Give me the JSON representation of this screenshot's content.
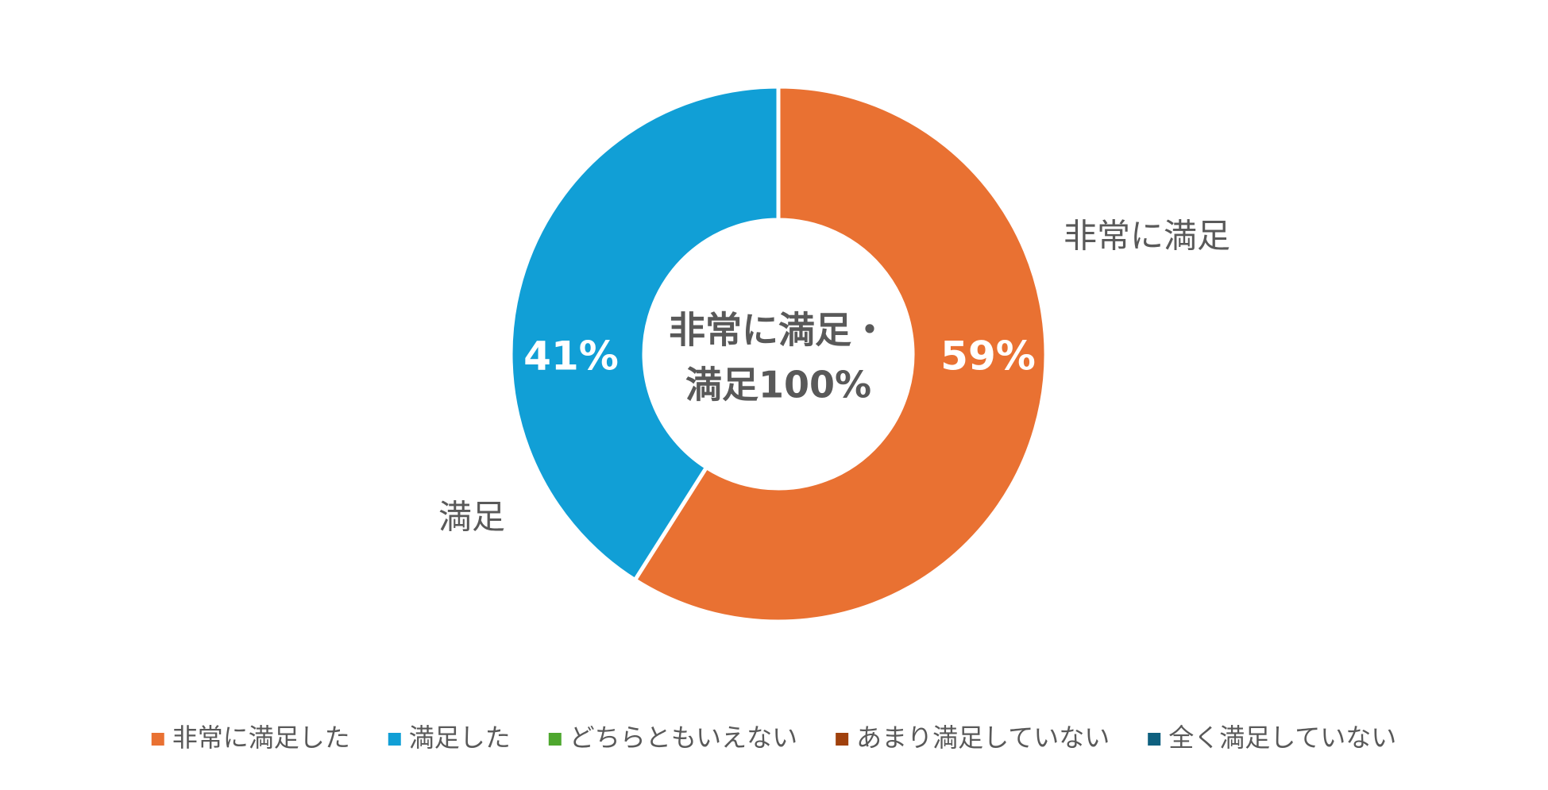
{
  "chart_data": {
    "type": "donut",
    "categories": [
      "非常に満足した",
      "満足した",
      "どちらともいえない",
      "あまり満足していない",
      "全く満足していない"
    ],
    "values": [
      59,
      41,
      0,
      0,
      0
    ],
    "value_labels": [
      "59%",
      "41%",
      null,
      null,
      null
    ],
    "segment_labels": [
      "非常に満足",
      "満足",
      null,
      null,
      null
    ],
    "colors": [
      "#e97132",
      "#119fd6",
      "#4ea72e",
      "#a0410d",
      "#0e607f"
    ],
    "center_text": [
      "非常に満足・",
      "満足100%"
    ],
    "legend": "bottom"
  }
}
